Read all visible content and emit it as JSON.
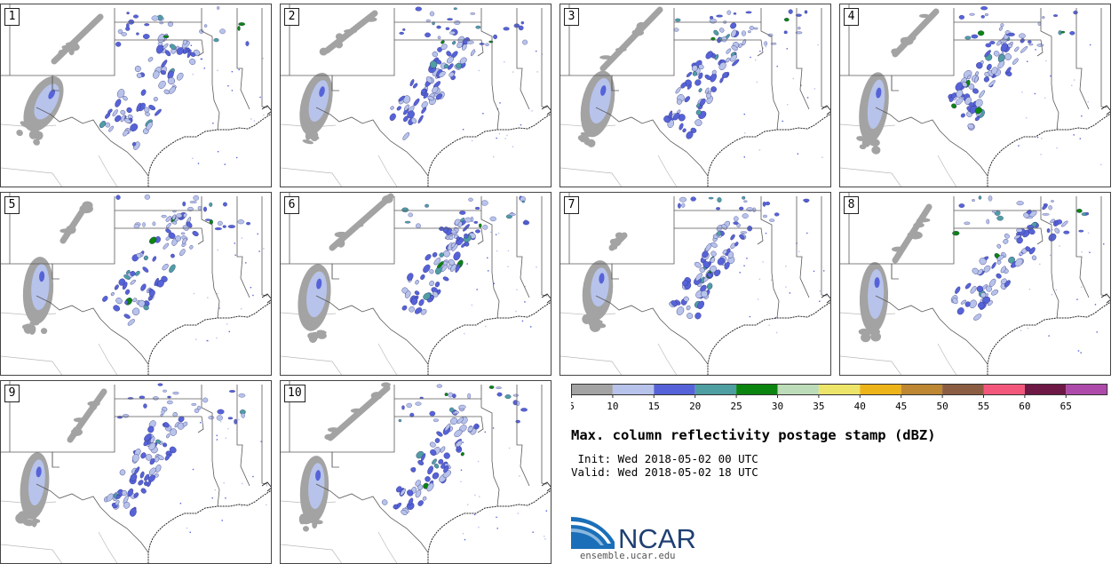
{
  "stamps": [
    {
      "label": "1"
    },
    {
      "label": "2"
    },
    {
      "label": "3"
    },
    {
      "label": "4"
    },
    {
      "label": "5"
    },
    {
      "label": "6"
    },
    {
      "label": "7"
    },
    {
      "label": "8"
    },
    {
      "label": "9"
    },
    {
      "label": "10"
    }
  ],
  "colorbar": {
    "colors": [
      "#a3a3a3",
      "#b7c3ea",
      "#5663d8",
      "#4f9ea2",
      "#0c8410",
      "#bddcb9",
      "#ede46a",
      "#edb419",
      "#bd8733",
      "#8b5d42",
      "#f4577c",
      "#6e1845",
      "#ae4aa9"
    ],
    "ticks": [
      "5",
      "10",
      "15",
      "20",
      "25",
      "30",
      "35",
      "40",
      "45",
      "50",
      "55",
      "60",
      "65"
    ]
  },
  "title": "Max. column reflectivity postage stamp (dBZ)",
  "init_line": " Init: Wed 2018-05-02 00 UTC",
  "valid_line": "Valid: Wed 2018-05-02 18 UTC",
  "logo": {
    "name": "NCAR",
    "url": "ensemble.ucar.edu"
  }
}
